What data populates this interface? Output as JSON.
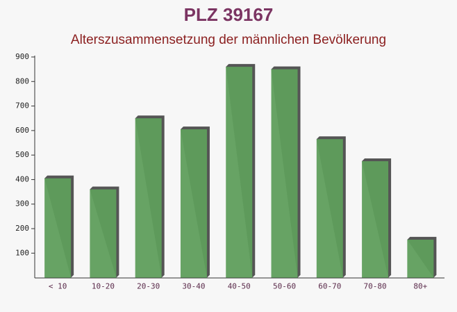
{
  "chart_data": {
    "type": "bar",
    "title": "PLZ 39167",
    "subtitle": "Alterszusammensetzung der männlichen Bevölkerung",
    "categories": [
      "< 10",
      "10-20",
      "20-30",
      "30-40",
      "40-50",
      "50-60",
      "60-70",
      "70-80",
      "80+"
    ],
    "values": [
      405,
      360,
      650,
      605,
      860,
      850,
      565,
      475,
      155
    ],
    "color": "#5f9e5c",
    "ylim": [
      0,
      900
    ],
    "yticks": [
      100,
      200,
      300,
      400,
      500,
      600,
      700,
      800,
      900
    ]
  }
}
